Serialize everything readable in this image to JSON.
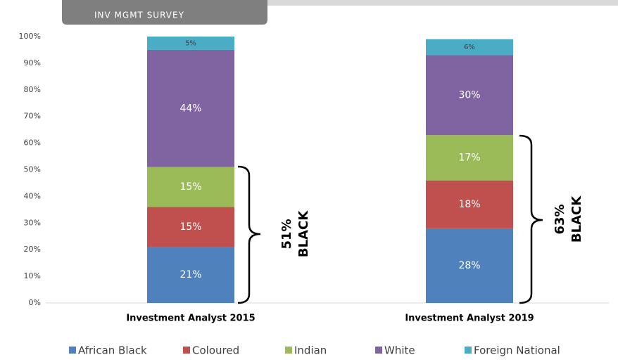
{
  "header": {
    "title": "INV MGMT SURVEY"
  },
  "chart_data": {
    "type": "stacked_bar",
    "categories": [
      "Investment Analyst 2015",
      "Investment Analyst 2019"
    ],
    "series": [
      {
        "name": "African Black",
        "color": "#4f81bd",
        "values": [
          21,
          28
        ],
        "value_labels": [
          "21%",
          "28%"
        ]
      },
      {
        "name": "Coloured",
        "color": "#c0504d",
        "values": [
          15,
          18
        ],
        "value_labels": [
          "15%",
          "18%"
        ]
      },
      {
        "name": "Indian",
        "color": "#9bbb59",
        "values": [
          15,
          17
        ],
        "value_labels": [
          "15%",
          "17%"
        ]
      },
      {
        "name": "White",
        "color": "#8064a2",
        "values": [
          44,
          30
        ],
        "value_labels": [
          "44%",
          "30%"
        ]
      },
      {
        "name": "Foreign National",
        "color": "#4bacc6",
        "values": [
          5,
          6
        ],
        "value_labels": [
          "5%",
          "6%"
        ]
      }
    ],
    "ylim": [
      0,
      100
    ],
    "yticks": [
      {
        "value": 0,
        "label": "0%"
      },
      {
        "value": 10,
        "label": "10%"
      },
      {
        "value": 20,
        "label": "20%"
      },
      {
        "value": 30,
        "label": "30%"
      },
      {
        "value": 40,
        "label": "40%"
      },
      {
        "value": 50,
        "label": "50%"
      },
      {
        "value": 60,
        "label": "60%"
      },
      {
        "value": 70,
        "label": "70%"
      },
      {
        "value": 80,
        "label": "80%"
      },
      {
        "value": 90,
        "label": "90%"
      },
      {
        "value": 100,
        "label": "100%"
      }
    ],
    "legend": "bottom",
    "annotations": [
      {
        "lines": [
          "51%",
          "BLACK"
        ]
      },
      {
        "lines": [
          "63%",
          "BLACK"
        ]
      }
    ]
  }
}
